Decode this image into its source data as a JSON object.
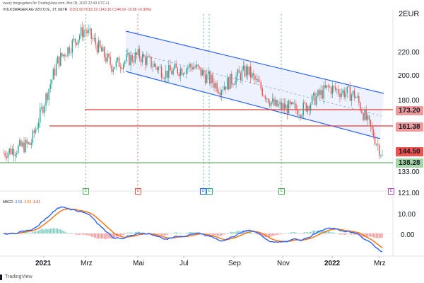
{
  "header": {
    "published": "zwery freigegeben für TradingView.com, Mrz 05, 2022 22:43 UTC+1"
  },
  "symbol": {
    "name": "VOLKSWAGEN AG VZO O.N., 1T, XETR",
    "open": "O151.00",
    "high": "H152.22",
    "low": "L143.16",
    "close": "C144.50",
    "change": "-10.86 (-6.99%)"
  },
  "currency_label": "EUR",
  "price_axis": {
    "ticks": [
      "220.00",
      "200.00",
      "180.00",
      "133.00",
      "121.00",
      "10.00",
      "0.00"
    ],
    "top_partial": "2"
  },
  "price_tags": [
    {
      "label": "173.20",
      "color": "#ef9a9a",
      "line_color": "#e53935"
    },
    {
      "label": "161.38",
      "color": "#ef9a9a",
      "line_color": "#e53935"
    },
    {
      "label": "144.50",
      "color": "#ef5350",
      "line_color": "#ef5350"
    },
    {
      "label": "138.28",
      "color": "#a5d6a7",
      "line_color": "#43a047"
    }
  ],
  "time_axis": [
    {
      "label": "2021",
      "bold": true
    },
    {
      "label": "Mrz",
      "bold": false
    },
    {
      "label": "Mai",
      "bold": false
    },
    {
      "label": "Jul",
      "bold": false
    },
    {
      "label": "Sep",
      "bold": false
    },
    {
      "label": "Nov",
      "bold": false
    },
    {
      "label": "2022",
      "bold": true
    },
    {
      "label": "Mrz",
      "bold": false
    }
  ],
  "event_markers": [
    "E",
    "D",
    "D",
    "E",
    "E",
    "E"
  ],
  "macd": {
    "title": "MACD",
    "v1": "-3.91",
    "v2": "-6.83",
    "v3": "-3.91"
  },
  "footer": {
    "brand": "TradingView"
  },
  "colors": {
    "channel": "#2962ff",
    "channel_fill": "#e8eeff",
    "up": "#26a69a",
    "down": "#ef5350",
    "macd_line": "#2962ff",
    "signal_line": "#ff6d00"
  },
  "chart_data": {
    "type": "candlestick",
    "title": "VOLKSWAGEN AG VZO O.N., 1T, XETR",
    "ylabel": "EUR",
    "ylim": [
      121,
      240
    ],
    "x": [
      "2021-01",
      "2021-02",
      "2021-03",
      "2021-04",
      "2021-05",
      "2021-06",
      "2021-07",
      "2021-08",
      "2021-09",
      "2021-10",
      "2021-11",
      "2021-12",
      "2022-01",
      "2022-02",
      "2022-03"
    ],
    "close": [
      146,
      152,
      208,
      230,
      205,
      212,
      200,
      205,
      190,
      202,
      178,
      175,
      190,
      185,
      144.5
    ],
    "levels": [
      173.2,
      161.38,
      144.5,
      138.28
    ]
  }
}
